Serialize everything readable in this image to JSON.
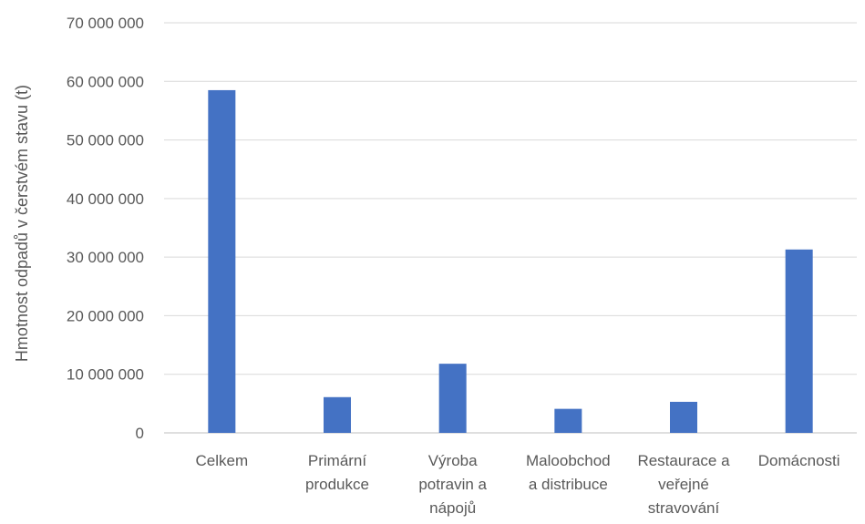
{
  "chart_data": {
    "type": "bar",
    "categories": [
      [
        "Celkem"
      ],
      [
        "Primární",
        "produkce"
      ],
      [
        "Výroba",
        "potravin a",
        "nápojů"
      ],
      [
        "Maloobchod",
        "a distribuce"
      ],
      [
        "Restaurace a",
        "veřejné",
        "stravování"
      ],
      [
        "Domácnosti"
      ]
    ],
    "values": [
      58500000,
      6100000,
      11800000,
      4100000,
      5300000,
      31300000
    ],
    "ylabel": "Hmotnost odpadů v čerstvém stavu (t)",
    "ylim": [
      0,
      70000000
    ],
    "yticks": [
      0,
      10000000,
      20000000,
      30000000,
      40000000,
      50000000,
      60000000,
      70000000
    ],
    "ytick_labels": [
      "0",
      "10 000 000",
      "20 000 000",
      "30 000 000",
      "40 000 000",
      "50 000 000",
      "60 000 000",
      "70 000 000"
    ],
    "bar_color": "#4472c4",
    "grid": true,
    "legend": "none"
  }
}
